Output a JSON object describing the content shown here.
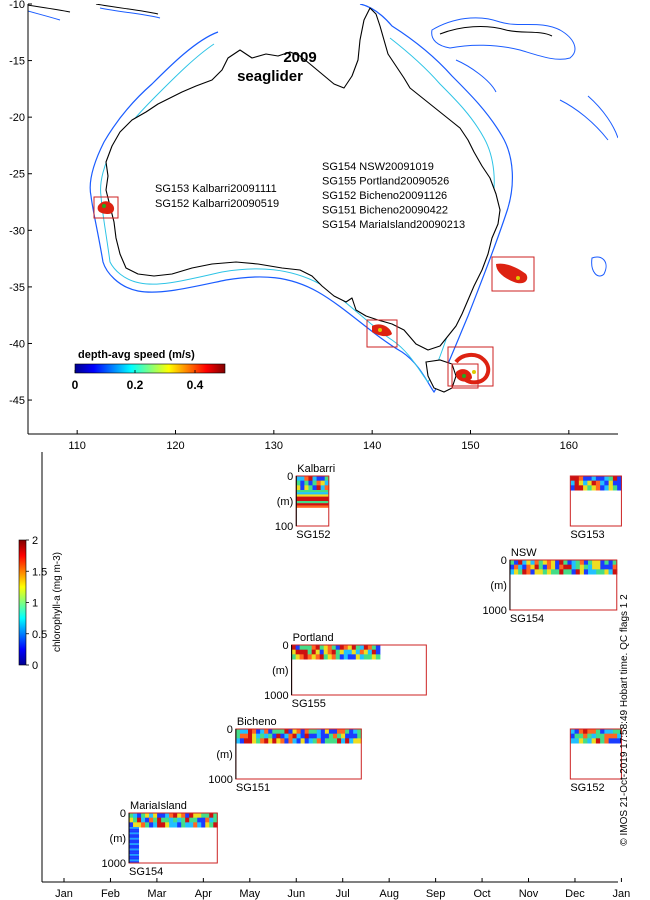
{
  "colors": {
    "coast": "#000000",
    "shelf_200m": "#2ec4e6",
    "shelf_1000m": "#1a5cff",
    "region_box": "#cc2222",
    "region_fill": "#dd2211"
  },
  "chart_data": [
    {
      "type": "map",
      "title": "2009",
      "subtitle": "seaglider",
      "xlim": [
        105,
        165
      ],
      "ylim": [
        -48,
        -10
      ],
      "xticks": [
        110,
        120,
        130,
        140,
        150,
        160
      ],
      "yticks": [
        -10,
        -15,
        -20,
        -25,
        -30,
        -35,
        -40,
        -45
      ],
      "glider_labels_west": [
        "SG153 Kalbarri20091111",
        "SG152 Kalbarri20090519"
      ],
      "glider_labels_east": [
        "SG154 NSW20091019",
        "SG155 Portland20090526",
        "SG152 Bicheno20091126",
        "SG151 Bicheno20090422",
        "SG154 MariaIsland20090213"
      ],
      "colorbar": {
        "label": "depth-avg speed (m/s)",
        "ticks": [
          0,
          0.2,
          0.4
        ],
        "range": [
          0,
          0.5
        ]
      },
      "regions": [
        {
          "name": "Kalbarri",
          "lon": [
            112,
            114
          ],
          "lat": [
            -29.2,
            -27.3
          ]
        },
        {
          "name": "Portland",
          "lon": [
            140,
            142.5
          ],
          "lat": [
            -40.4,
            -38
          ]
        },
        {
          "name": "NSW",
          "lon": [
            152.5,
            156
          ],
          "lat": [
            -35.2,
            -32.5
          ]
        },
        {
          "name": "Bicheno",
          "lon": [
            148,
            152.5
          ],
          "lat": [
            -43.3,
            -39.8
          ]
        },
        {
          "name": "MariaIsland",
          "lon": [
            148,
            150
          ],
          "lat": [
            -43.8,
            -41.5
          ]
        }
      ]
    },
    {
      "type": "timeline",
      "xticks": [
        "Jan",
        "Feb",
        "Mar",
        "Apr",
        "May",
        "Jun",
        "Jul",
        "Aug",
        "Sep",
        "Oct",
        "Nov",
        "Dec",
        "Jan"
      ],
      "colorbar": {
        "label": "chlorophyll-a (mg m-3)",
        "ticks": [
          "0",
          "0.5",
          "1",
          "1.5",
          "2"
        ],
        "range": [
          0,
          2
        ]
      },
      "depth_unit": "(m)",
      "missions": [
        {
          "site": "MariaIsland",
          "glider": "SG154",
          "start_month": 1.4,
          "end_month": 3.3,
          "data_end_month": 3.3,
          "max_depth": 1000,
          "depth_top_label": "0",
          "depth_bottom_label": "1000"
        },
        {
          "site": "Bicheno",
          "glider": "SG151",
          "start_month": 3.7,
          "end_month": 6.4,
          "data_end_month": 6.4,
          "max_depth": 1000,
          "depth_top_label": "0",
          "depth_bottom_label": "1000"
        },
        {
          "site": "Portland",
          "glider": "SG155",
          "start_month": 4.9,
          "end_month": 7.8,
          "data_end_month": 6.8,
          "max_depth": 1000,
          "depth_top_label": "0",
          "depth_bottom_label": "1000"
        },
        {
          "site": "Kalbarri",
          "glider": "SG152",
          "start_month": 5.0,
          "end_month": 5.7,
          "data_end_month": 5.7,
          "max_depth": 100,
          "depth_top_label": "0",
          "depth_bottom_label": "100"
        },
        {
          "site": "NSW",
          "glider": "SG154",
          "start_month": 9.6,
          "end_month": 11.9,
          "data_end_month": 11.9,
          "max_depth": 1000,
          "depth_top_label": "0",
          "depth_bottom_label": "1000"
        },
        {
          "site": "",
          "glider": "SG153",
          "start_month": 10.9,
          "end_month": 12.0,
          "data_end_month": 12.0,
          "max_depth": 1000,
          "depth_top_label": "",
          "depth_bottom_label": ""
        },
        {
          "site": "",
          "glider": "SG152",
          "start_month": 10.9,
          "end_month": 12.0,
          "data_end_month": 12.0,
          "max_depth": 1000,
          "depth_top_label": "",
          "depth_bottom_label": ""
        }
      ]
    }
  ],
  "footer": {
    "credit": "© IMOS 21-Oct-2019 17:58:49 Hobart time. QC flags 1 2"
  }
}
